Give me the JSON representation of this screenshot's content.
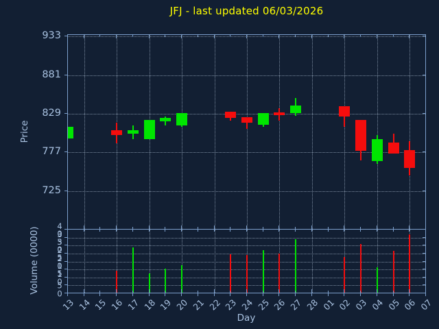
{
  "colors": {
    "background": "#121f33",
    "spine": "#7da0cd",
    "tick_label": "#a9c2e1",
    "grid": "#9fb0c4",
    "title": "#ffff00",
    "up": "#00e600",
    "down": "#f50d0d"
  },
  "chart_data": {
    "type": "candlestick",
    "title": "JFJ - last updated 06/03/2026",
    "xlabel": "Day",
    "grid": true,
    "x_ticklabels": [
      "13",
      "14",
      "15",
      "16",
      "17",
      "18",
      "19",
      "20",
      "21",
      "22",
      "23",
      "24",
      "25",
      "26",
      "27",
      "28",
      "01",
      "02",
      "03",
      "04",
      "05",
      "06",
      "07"
    ],
    "major_gridline_day_indices": [
      1,
      3,
      5,
      7,
      9,
      11,
      13,
      15,
      17,
      19,
      21
    ],
    "price_axis": {
      "label": "Price",
      "ticks": [
        933,
        881,
        829,
        777,
        725
      ],
      "ylim": [
        673,
        935
      ]
    },
    "volume_axis": {
      "label": "Volume (0000)",
      "ticks": [
        40,
        35,
        30,
        25,
        20,
        15,
        10,
        5,
        0
      ],
      "ylim": [
        0,
        40
      ]
    },
    "series": [
      {
        "day": "13",
        "day_index": 0,
        "open": 796,
        "high": 811,
        "low": 796,
        "close": 811,
        "volume_0000s": null,
        "direction": "up"
      },
      {
        "day": "16",
        "day_index": 3,
        "open": 807,
        "high": 817,
        "low": 789,
        "close": 800,
        "volume_0000s": 14,
        "direction": "down"
      },
      {
        "day": "17",
        "day_index": 4,
        "open": 802,
        "high": 813,
        "low": 795,
        "close": 807,
        "volume_0000s": 29,
        "direction": "up"
      },
      {
        "day": "18",
        "day_index": 5,
        "open": 795,
        "high": 821,
        "low": 795,
        "close": 821,
        "volume_0000s": 12.5,
        "direction": "up"
      },
      {
        "day": "19",
        "day_index": 6,
        "open": 819,
        "high": 825,
        "low": 813,
        "close": 823,
        "volume_0000s": 15.5,
        "direction": "up"
      },
      {
        "day": "20",
        "day_index": 7,
        "open": 813,
        "high": 830,
        "low": 811,
        "close": 830,
        "volume_0000s": 17.5,
        "direction": "up"
      },
      {
        "day": "23",
        "day_index": 10,
        "open": 832,
        "high": 832,
        "low": 820,
        "close": 823,
        "volume_0000s": 24.5,
        "direction": "down"
      },
      {
        "day": "24",
        "day_index": 11,
        "open": 824,
        "high": 824,
        "low": 809,
        "close": 817,
        "volume_0000s": 24,
        "direction": "down"
      },
      {
        "day": "25",
        "day_index": 12,
        "open": 814,
        "high": 830,
        "low": 811,
        "close": 830,
        "volume_0000s": 27,
        "direction": "up"
      },
      {
        "day": "26",
        "day_index": 13,
        "open": 831,
        "high": 836,
        "low": 820,
        "close": 827,
        "volume_0000s": 25,
        "direction": "down"
      },
      {
        "day": "27",
        "day_index": 14,
        "open": 830,
        "high": 850,
        "low": 826,
        "close": 840,
        "volume_0000s": 34,
        "direction": "up"
      },
      {
        "day": "02",
        "day_index": 17,
        "open": 839,
        "high": 839,
        "low": 811,
        "close": 825,
        "volume_0000s": 23,
        "direction": "down"
      },
      {
        "day": "03",
        "day_index": 18,
        "open": 821,
        "high": 821,
        "low": 766,
        "close": 779,
        "volume_0000s": 31,
        "direction": "down"
      },
      {
        "day": "04",
        "day_index": 19,
        "open": 765,
        "high": 800,
        "low": 762,
        "close": 795,
        "volume_0000s": 16.5,
        "direction": "up"
      },
      {
        "day": "05",
        "day_index": 20,
        "open": 790,
        "high": 802,
        "low": 775,
        "close": 775,
        "volume_0000s": 26.5,
        "direction": "down"
      },
      {
        "day": "06",
        "day_index": 21,
        "open": 780,
        "high": 792,
        "low": 746,
        "close": 756,
        "volume_0000s": 37,
        "direction": "down"
      }
    ]
  }
}
